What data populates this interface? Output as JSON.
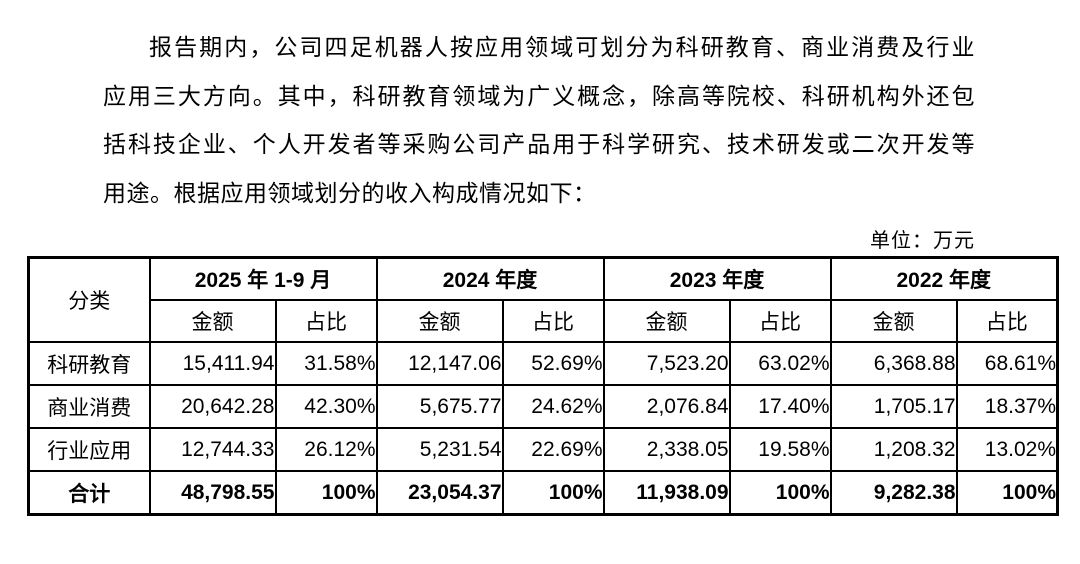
{
  "paragraph": {
    "lines": [
      "报告期内，公司四足机器人按应用领域可划分为科研教育、商业消费及行业",
      "应用三大方向。其中，科研教育领域为广义概念，除高等院校、科研机构外还包",
      "括科技企业、个人开发者等采购公司产品用于科学研究、技术研发或二次开发等",
      "用途。根据应用领域划分的收入构成情况如下："
    ]
  },
  "unit_label": "单位：万元",
  "table": {
    "category_header": "分类",
    "col_groups": [
      {
        "period": "2025 年 1-9 月",
        "amount_label": "金额",
        "ratio_label": "占比"
      },
      {
        "period": "2024 年度",
        "amount_label": "金额",
        "ratio_label": "占比"
      },
      {
        "period": "2023 年度",
        "amount_label": "金额",
        "ratio_label": "占比"
      },
      {
        "period": "2022 年度",
        "amount_label": "金额",
        "ratio_label": "占比"
      }
    ],
    "rows": [
      {
        "category": "科研教育",
        "cells": [
          "15,411.94",
          "31.58%",
          "12,147.06",
          "52.69%",
          "7,523.20",
          "63.02%",
          "6,368.88",
          "68.61%"
        ]
      },
      {
        "category": "商业消费",
        "cells": [
          "20,642.28",
          "42.30%",
          "5,675.77",
          "24.62%",
          "2,076.84",
          "17.40%",
          "1,705.17",
          "18.37%"
        ]
      },
      {
        "category": "行业应用",
        "cells": [
          "12,744.33",
          "26.12%",
          "5,231.54",
          "22.69%",
          "2,338.05",
          "19.58%",
          "1,208.32",
          "13.02%"
        ]
      },
      {
        "category": "合计",
        "cells": [
          "48,798.55",
          "100%",
          "23,054.37",
          "100%",
          "11,938.09",
          "100%",
          "9,282.38",
          "100%"
        ]
      }
    ]
  },
  "colors": {
    "text": "#000000",
    "background": "#ffffff",
    "border": "#000000"
  }
}
